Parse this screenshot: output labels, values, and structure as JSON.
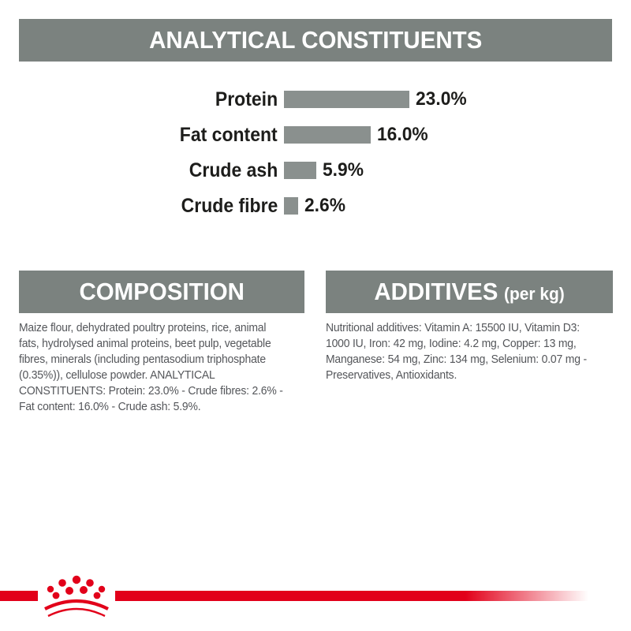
{
  "colors": {
    "banner_gray": "#7b827f",
    "bar_gray": "#8a908e",
    "text_black": "#1d1d1b",
    "body_gray": "#54565a",
    "brand_red": "#e2001a"
  },
  "analytical": {
    "title": "ANALYTICAL CONSTITUENTS"
  },
  "chart_data": {
    "type": "bar",
    "orientation": "horizontal",
    "title": "ANALYTICAL CONSTITUENTS",
    "categories": [
      "Protein",
      "Fat content",
      "Crude ash",
      "Crude fibre"
    ],
    "values": [
      23.0,
      16.0,
      5.9,
      2.6
    ],
    "value_labels": [
      "23.0%",
      "16.0%",
      "5.9%",
      "2.6%"
    ],
    "unit": "%",
    "xlim": [
      0,
      25
    ],
    "grid": false,
    "legend": false,
    "bar_color": "#8a908e",
    "label_color": "#1d1d1b"
  },
  "composition": {
    "heading": "COMPOSITION",
    "body_lines": [
      "Maize flour, dehydrated poultry proteins, rice, animal",
      "fats, hydrolysed animal proteins, beet pulp, vegetable",
      "fibres, minerals (including pentasodium triphosphate",
      "(0.35%)), cellulose powder. ANALYTICAL",
      "CONSTITUENTS: Protein: 23.0% - Crude fibres: 2.6% -",
      "Fat content: 16.0% - Crude ash: 5.9%."
    ]
  },
  "additives": {
    "heading": "ADDITIVES",
    "heading_suffix": "(per kg)",
    "body_lines": [
      "Nutritional additives: Vitamin A: 15500 IU, Vitamin D3:",
      "1000 IU, Iron: 42 mg, Iodine: 4.2 mg, Copper: 13 mg,",
      "Manganese: 54 mg, Zinc: 134 mg, Selenium: 0.07 mg -",
      "Preservatives, Antioxidants."
    ]
  },
  "footer": {
    "crown_icon": "royal-canin-crown-icon",
    "stripe_color": "#e2001a"
  }
}
